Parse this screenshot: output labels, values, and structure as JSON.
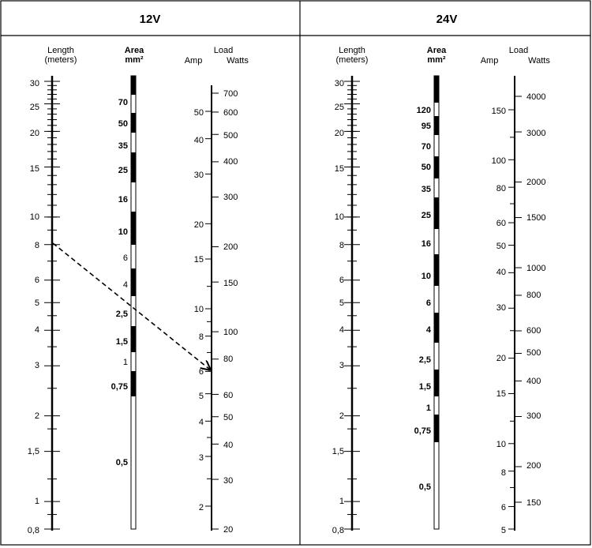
{
  "panels": [
    {
      "title": "12V",
      "headers": {
        "length": [
          "Length",
          "(meters)"
        ],
        "area": [
          "Area",
          "mm²"
        ],
        "load": "Load",
        "amp": "Amp",
        "watts": "Watts"
      },
      "length_labels": [
        "30",
        "25",
        "20",
        "15",
        "10",
        "8",
        "6",
        "5",
        "4",
        "3",
        "2",
        "1,5",
        "1",
        "0,8"
      ],
      "area_labels": [
        "70",
        "50",
        "35",
        "25",
        "16",
        "10",
        "6",
        "4",
        "2,5",
        "1,5",
        "1",
        "0,75",
        "0,5"
      ],
      "amp_labels": [
        "50",
        "40",
        "30",
        "20",
        "15",
        "10",
        "8",
        "6",
        "5",
        "4",
        "3",
        "2"
      ],
      "watts_labels": [
        "700",
        "600",
        "500",
        "400",
        "300",
        "200",
        "150",
        "100",
        "80",
        "60",
        "50",
        "40",
        "30",
        "20"
      ]
    },
    {
      "title": "24V",
      "headers": {
        "length": [
          "Length",
          "(meters)"
        ],
        "area": [
          "Area",
          "mm²"
        ],
        "load": "Load",
        "amp": "Amp",
        "watts": "Watts"
      },
      "length_labels": [
        "30",
        "25",
        "20",
        "15",
        "10",
        "8",
        "6",
        "5",
        "4",
        "3",
        "2",
        "1,5",
        "1",
        "0,8"
      ],
      "area_labels": [
        "120",
        "95",
        "70",
        "50",
        "35",
        "25",
        "16",
        "10",
        "6",
        "4",
        "2,5",
        "1,5",
        "1",
        "0,75",
        "0,5"
      ],
      "amp_labels": [
        "150",
        "100",
        "80",
        "60",
        "50",
        "40",
        "30",
        "20",
        "15",
        "10",
        "8",
        "6",
        "5"
      ],
      "watts_labels": [
        "4000",
        "3000",
        "2000",
        "1500",
        "1000",
        "800",
        "600",
        "500",
        "400",
        "300",
        "200",
        "150"
      ]
    }
  ],
  "example": {
    "length_m": 8,
    "amp": 6.5,
    "line_style": "dashed"
  }
}
